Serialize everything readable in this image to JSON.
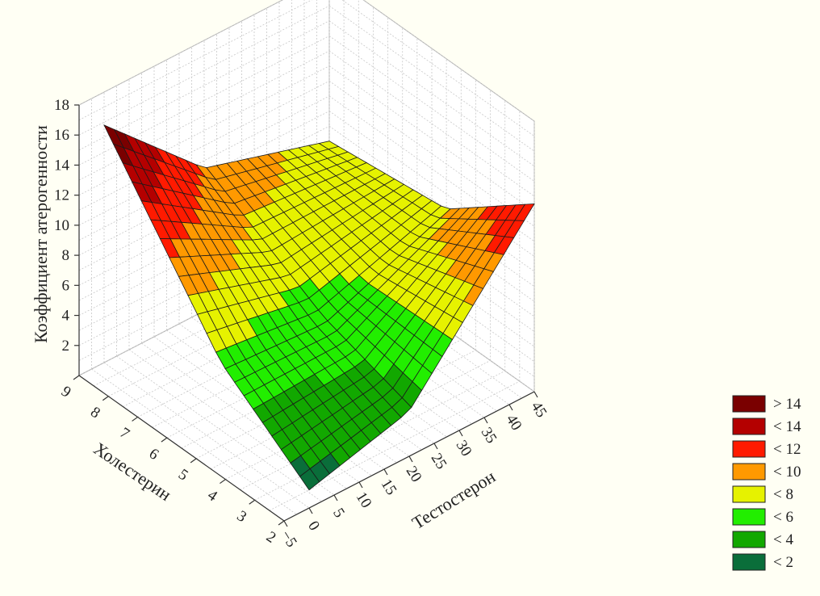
{
  "chart_data": {
    "type": "surface3d",
    "title": "",
    "zlabel": "Коэффициент атерогенности",
    "xlabel": "Тестостерон",
    "ylabel": "Холестерин",
    "zticks": [
      2,
      4,
      6,
      8,
      10,
      12,
      14,
      16,
      18
    ],
    "xticks": [
      -5,
      0,
      5,
      10,
      15,
      20,
      25,
      30,
      35,
      40,
      45
    ],
    "yticks": [
      2,
      3,
      4,
      5,
      6,
      7,
      8,
      9
    ],
    "zlim": [
      0,
      18
    ],
    "xlim": [
      -5,
      45
    ],
    "ylim": [
      2,
      9
    ],
    "grid": true,
    "legend_position": "bottom-right",
    "legend": [
      {
        "label": "> 14",
        "color": "#7a0000"
      },
      {
        "label": "< 14",
        "color": "#b40000"
      },
      {
        "label": "< 12",
        "color": "#ff1a00"
      },
      {
        "label": "< 10",
        "color": "#ff9900"
      },
      {
        "label": "< 8",
        "color": "#e6f200"
      },
      {
        "label": "< 6",
        "color": "#22ee00"
      },
      {
        "label": "< 4",
        "color": "#12a800"
      },
      {
        "label": "< 2",
        "color": "#0a6e3a"
      }
    ],
    "surface_samples": [
      {
        "testosterone": 0,
        "cholesterol": 9,
        "atherogenic_index": 15.8
      },
      {
        "testosterone": 0,
        "cholesterol": 5,
        "atherogenic_index": 5.5
      },
      {
        "testosterone": 0,
        "cholesterol": 2,
        "atherogenic_index": 1.2
      },
      {
        "testosterone": 20,
        "cholesterol": 9,
        "atherogenic_index": 9.5
      },
      {
        "testosterone": 20,
        "cholesterol": 5,
        "atherogenic_index": 5.0
      },
      {
        "testosterone": 20,
        "cholesterol": 2,
        "atherogenic_index": 3.0
      },
      {
        "testosterone": 45,
        "cholesterol": 9,
        "atherogenic_index": 7.0
      },
      {
        "testosterone": 45,
        "cholesterol": 5,
        "atherogenic_index": 8.0
      },
      {
        "testosterone": 45,
        "cholesterol": 2,
        "atherogenic_index": 12.5
      }
    ]
  }
}
